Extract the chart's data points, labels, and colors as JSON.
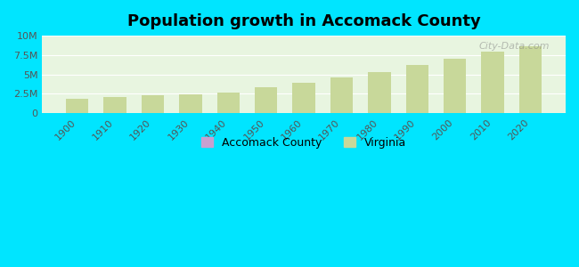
{
  "title": "Population growth in Accomack County",
  "years": [
    1900,
    1910,
    1920,
    1930,
    1940,
    1950,
    1960,
    1970,
    1980,
    1990,
    2000,
    2010,
    2020
  ],
  "virginia_pop": [
    1854184,
    2061612,
    2309187,
    2421851,
    2677773,
    3318680,
    3966949,
    4648494,
    5346818,
    6187358,
    7078515,
    8001024,
    8631393
  ],
  "accomack_pop": [
    26072,
    24814,
    26725,
    27972,
    28421,
    30635,
    30949,
    29004,
    31268,
    31703,
    38305,
    33164,
    32316
  ],
  "bar_color_virginia": "#c8d89a",
  "bar_color_accomack": "#c8a0d0",
  "background_outer": "#00e5ff",
  "background_plot_top": "#e8f5e0",
  "background_plot_bot": "#c0f0e8",
  "ylim": [
    0,
    10000000
  ],
  "yticks": [
    0,
    2500000,
    5000000,
    7500000,
    10000000
  ],
  "ytick_labels": [
    "0",
    "2.5M",
    "5M",
    "7.5M",
    "10M"
  ],
  "legend_accomack_label": "Accomack County",
  "legend_virginia_label": "Virginia",
  "watermark": "City-Data.com",
  "bar_width": 0.6
}
